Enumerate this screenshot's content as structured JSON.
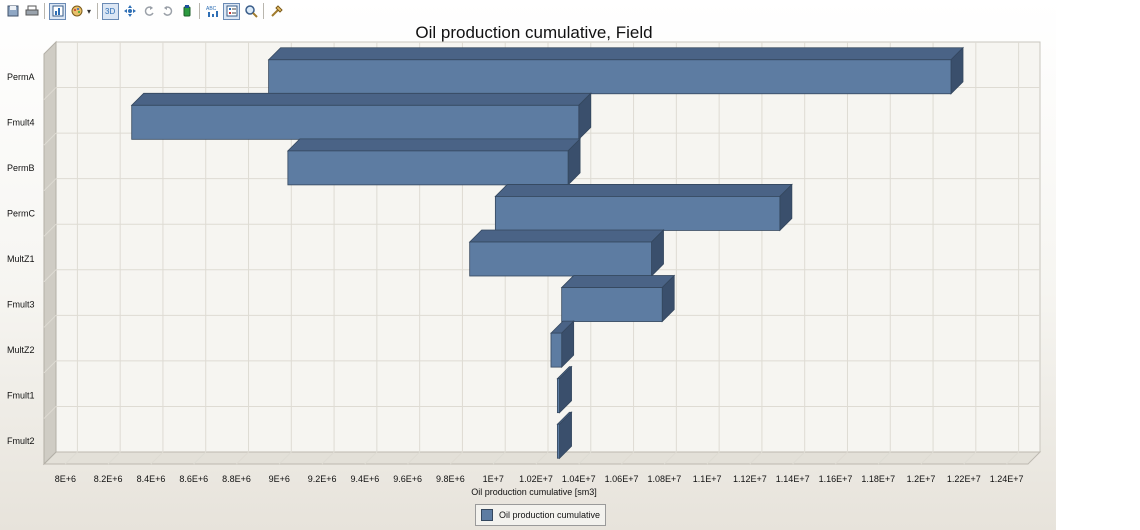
{
  "toolbar": {
    "buttons": [
      {
        "name": "save-icon"
      },
      {
        "name": "print-icon"
      },
      {
        "name": "chart-type-icon",
        "active": true
      },
      {
        "name": "palette-icon",
        "dropdown": true
      },
      {
        "name": "view-3d-icon",
        "active": true
      },
      {
        "name": "move-icon"
      },
      {
        "name": "rotate-left-icon"
      },
      {
        "name": "rotate-right-icon"
      },
      {
        "name": "color-edit-icon"
      },
      {
        "name": "data-labels-icon"
      },
      {
        "name": "legend-toggle-icon",
        "active": true
      },
      {
        "name": "zoom-icon"
      },
      {
        "name": "properties-icon"
      }
    ]
  },
  "chart_data": {
    "type": "bar",
    "orientation": "horizontal",
    "title": "Oil production cumulative, Field",
    "xlabel": "Oil production cumulative [sm3]",
    "ylabel": "",
    "xlim": [
      7900000,
      12500000
    ],
    "xticks": [
      8000000,
      8200000,
      8400000,
      8600000,
      8800000,
      9000000,
      9200000,
      9400000,
      9600000,
      9800000,
      10000000,
      10200000,
      10400000,
      10600000,
      10800000,
      11000000,
      11200000,
      11400000,
      11600000,
      11800000,
      12000000,
      12200000,
      12400000
    ],
    "xtick_labels": [
      "8E+6",
      "8.2E+6",
      "8.4E+6",
      "8.6E+6",
      "8.8E+6",
      "9E+6",
      "9.2E+6",
      "9.4E+6",
      "9.6E+6",
      "9.8E+6",
      "1E+7",
      "1.02E+7",
      "1.04E+7",
      "1.06E+7",
      "1.08E+7",
      "1.1E+7",
      "1.12E+7",
      "1.14E+7",
      "1.16E+7",
      "1.18E+7",
      "1.2E+7",
      "1.22E+7",
      "1.24E+7"
    ],
    "categories": [
      "PermA",
      "Fmult4",
      "PermB",
      "PermC",
      "MultZ1",
      "Fmult3",
      "MultZ2",
      "Fmult1",
      "Fmult2"
    ],
    "series": [
      {
        "name": "Oil production cumulative",
        "ranges": [
          [
            8950000,
            12140000
          ],
          [
            8310000,
            10400000
          ],
          [
            9040000,
            10350000
          ],
          [
            10010000,
            11340000
          ],
          [
            9890000,
            10740000
          ],
          [
            10320000,
            10790000
          ],
          [
            10270000,
            10320000
          ],
          [
            10300000,
            10310000
          ],
          [
            10300000,
            10310000
          ]
        ]
      }
    ],
    "grid": true,
    "legend": "bottom-center",
    "colors": {
      "bar_front": "#5d7ca2",
      "bar_top": "#4a6386",
      "bar_side": "#3a4f6c",
      "bar_edge": "#34475e",
      "plot_bg": "#f6f5f1",
      "grid": "#dedbd3"
    }
  }
}
